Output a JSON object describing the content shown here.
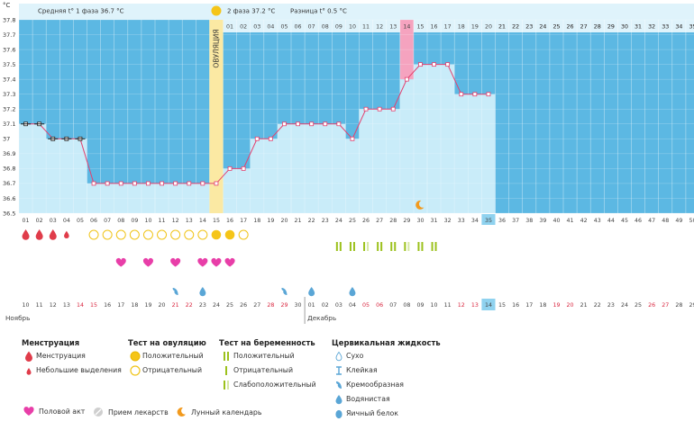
{
  "chart_data": {
    "type": "line",
    "unit_label": "°C",
    "ylim": [
      36.5,
      37.8
    ],
    "y_ticks": [
      "36.5",
      "36.6",
      "36.7",
      "36.8",
      "36.9",
      "37",
      "37.1",
      "37.2",
      "37.3",
      "37.4",
      "37.5",
      "37.6",
      "37.7",
      "37.8"
    ],
    "cycle_days": [
      "01",
      "02",
      "03",
      "04",
      "05",
      "06",
      "07",
      "08",
      "09",
      "10",
      "11",
      "12",
      "13",
      "14",
      "15",
      "16",
      "17",
      "18",
      "19",
      "20",
      "21",
      "22",
      "23",
      "24",
      "25",
      "26",
      "27",
      "28",
      "29",
      "30",
      "31",
      "32",
      "33",
      "34",
      "35",
      "36",
      "37",
      "38",
      "39",
      "40",
      "41",
      "42",
      "43",
      "44",
      "45",
      "46",
      "47",
      "48",
      "49",
      "50"
    ],
    "current_cycle_day": "35",
    "temperatures": [
      37.1,
      37.1,
      37.0,
      37.0,
      37.0,
      36.7,
      36.7,
      36.7,
      36.7,
      36.7,
      36.7,
      36.7,
      36.7,
      36.7,
      36.7,
      36.8,
      36.8,
      37.0,
      37.0,
      37.1,
      37.1,
      37.1,
      37.1,
      37.1,
      37.0,
      37.2,
      37.2,
      37.2,
      37.4,
      37.5,
      37.5,
      37.5,
      37.3,
      37.3,
      37.3
    ],
    "ovulation_day": 15,
    "ovulation_label": "ОВУЛЯЦИЯ",
    "phase1_avg": "Средняя t° 1 фаза 36.7 °C",
    "phase2_avg": "2 фаза 37.2 °C",
    "difference": "Разница t° 0.5 °C",
    "phase2_days": [
      "01",
      "02",
      "03",
      "04",
      "05",
      "06",
      "07",
      "08",
      "09",
      "10",
      "11",
      "12",
      "13",
      "14",
      "15",
      "16",
      "17",
      "18",
      "19",
      "20",
      "21",
      "22",
      "23",
      "24",
      "25",
      "26",
      "27",
      "28",
      "29",
      "30",
      "31",
      "32",
      "33",
      "34",
      "35"
    ],
    "highlight_phase2_day": "14",
    "moon_day": 30,
    "menstruation_days": [
      1,
      2,
      3,
      4
    ],
    "spotting_days": [
      4
    ],
    "ovulation_test": {
      "positive": [
        15,
        16
      ],
      "negative": [
        6,
        7,
        8,
        9,
        10,
        11,
        12,
        13,
        14,
        17
      ]
    },
    "sex_days": [
      8,
      10,
      12,
      14,
      15,
      16
    ],
    "pregnancy_test": {
      "positive": [
        24,
        25,
        27,
        28,
        30,
        31
      ],
      "weak": [
        26,
        29
      ]
    },
    "cervical_days": {
      "creamy": [
        12,
        20
      ],
      "watery": [
        14,
        22,
        25
      ]
    },
    "calendar": [
      "10",
      "11",
      "12",
      "13",
      "14",
      "15",
      "16",
      "17",
      "18",
      "19",
      "20",
      "21",
      "22",
      "23",
      "24",
      "25",
      "26",
      "27",
      "28",
      "29",
      "30",
      "01",
      "02",
      "03",
      "04",
      "05",
      "06",
      "07",
      "08",
      "09",
      "10",
      "11",
      "12",
      "13",
      "14",
      "15",
      "16",
      "17",
      "18",
      "19",
      "20",
      "21",
      "22",
      "23",
      "24",
      "25",
      "26",
      "27",
      "28",
      "29"
    ],
    "calendar_red": [
      5,
      6,
      12,
      13,
      19,
      20,
      26,
      27,
      33,
      34,
      40,
      41,
      47,
      48
    ],
    "calendar_highlight": 35,
    "month_start": "Ноябрь",
    "month_next": "Декабрь",
    "month_boundary": 22,
    "colors": {
      "fill": "#c9ecf9",
      "empty": "#5cb8e3",
      "line": "#e3416f",
      "pink": "#f5a3bf",
      "ovulation": "#fbe9a3",
      "header": "#dff3fb"
    }
  },
  "legend": {
    "menstruation": {
      "title": "Менструация",
      "items": [
        "Менструация",
        "Небольшие выделения"
      ]
    },
    "ovulation_test": {
      "title": "Тест на овуляцию",
      "items": [
        "Положительный",
        "Отрицательный"
      ]
    },
    "pregnancy_test": {
      "title": "Тест на беременность",
      "items": [
        "Положительный",
        "Отрицательный",
        "Слабоположительный"
      ]
    },
    "cervical": {
      "title": "Цервикальная жидкость",
      "items": [
        "Сухо",
        "Клейкая",
        "Кремообразная",
        "Водянистая",
        "Яичный белок"
      ]
    },
    "bottom": [
      "Половой акт",
      "Прием лекарств",
      "Лунный календарь"
    ]
  }
}
